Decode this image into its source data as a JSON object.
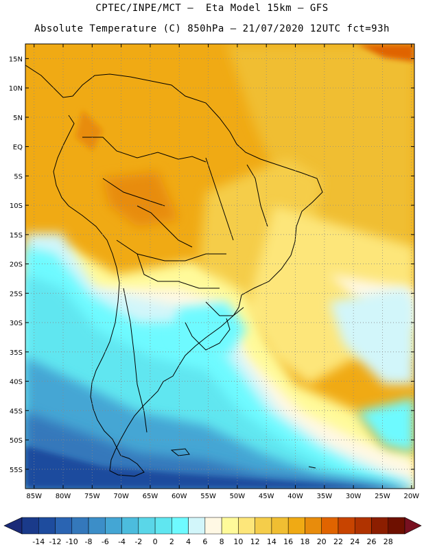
{
  "header": {
    "line1": "CPTEC/INPE/MCT –  Eta Model 15km – GFS",
    "line2": "Absolute Temperature (C) 850hPa – 21/07/2020 12UTC fct=93h"
  },
  "map": {
    "lat_labels": [
      "15N",
      "10N",
      "5N",
      "EQ",
      "5S",
      "10S",
      "15S",
      "20S",
      "25S",
      "30S",
      "35S",
      "40S",
      "45S",
      "50S",
      "55S"
    ],
    "lat_values": [
      15,
      10,
      5,
      0,
      -5,
      -10,
      -15,
      -20,
      -25,
      -30,
      -35,
      -40,
      -45,
      -50,
      -55
    ],
    "lon_labels": [
      "85W",
      "80W",
      "75W",
      "70W",
      "65W",
      "60W",
      "55W",
      "50W",
      "45W",
      "40W",
      "35W",
      "30W",
      "25W",
      "20W"
    ],
    "lon_values": [
      -85,
      -80,
      -75,
      -70,
      -65,
      -60,
      -55,
      -50,
      -45,
      -40,
      -35,
      -30,
      -25,
      -20
    ],
    "field_description_colors": {
      "north_tropics": "#f0aa14",
      "northeast_ocean": "#f0be32",
      "central_land": "#f5b82a",
      "east_subtropics": "#fde67a",
      "south_atlantic_mid": "#fff5d0",
      "patagonia_shelf": "#6ee8f2",
      "southern_ocean": "#3ca0d2",
      "deep_south": "#2566b0"
    }
  },
  "colorbar": {
    "labels": [
      "-14",
      "-12",
      "-10",
      "-8",
      "-6",
      "-4",
      "-2",
      "0",
      "2",
      "4",
      "6",
      "8",
      "10",
      "12",
      "14",
      "16",
      "18",
      "20",
      "22",
      "24",
      "26",
      "28"
    ],
    "colors": [
      "#1a3a8a",
      "#1e4c9e",
      "#2a64b2",
      "#3478bb",
      "#3c8ec8",
      "#44a6d4",
      "#4cbcdd",
      "#5ad6e8",
      "#60e6f0",
      "#6efaff",
      "#d2f6fa",
      "#fff8e4",
      "#fffa9a",
      "#fde67a",
      "#f5cd4a",
      "#f0be32",
      "#f0aa14",
      "#e88c0c",
      "#e06400",
      "#c84400",
      "#b03300",
      "#8c1e00",
      "#6e1000"
    ],
    "arrow_left_color": "#1a2a78",
    "arrow_right_color": "#781020"
  }
}
